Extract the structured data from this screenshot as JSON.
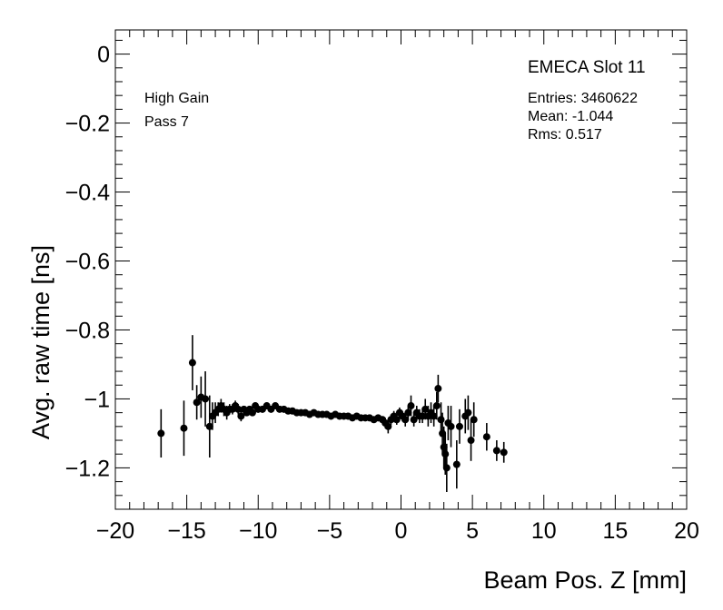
{
  "chart_data": {
    "type": "scatter",
    "title": "",
    "xlabel": "Beam Pos. Z [mm]",
    "ylabel": "Avg. raw time [ns]",
    "xlim": [
      -20,
      20
    ],
    "ylim": [
      -1.32,
      0.07
    ],
    "xticks": [
      -20,
      -15,
      -10,
      -5,
      0,
      5,
      10,
      15,
      20
    ],
    "xtick_labels": [
      "−20",
      "−15",
      "−10",
      "−5",
      "0",
      "5",
      "10",
      "15",
      "20"
    ],
    "yticks": [
      0,
      -0.2,
      -0.4,
      -0.6,
      -0.8,
      -1,
      -1.2
    ],
    "ytick_labels": [
      "0",
      "−0.2",
      "−0.4",
      "−0.6",
      "−0.8",
      "−1",
      "−1.2"
    ],
    "grid": false,
    "legend": null,
    "annotations": {
      "top_left": [
        "High Gain",
        "Pass 7"
      ],
      "title_box": "EMECA Slot 11",
      "stats": [
        "Entries: 3460622",
        "Mean: -1.044",
        "Rms: 0.517"
      ]
    },
    "series": [
      {
        "marker_color": "#000000",
        "x": [
          -16.8,
          -15.2,
          -14.6,
          -14.3,
          -14.0,
          -13.7,
          -13.4,
          -13.2,
          -13.0,
          -12.8,
          -12.6,
          -12.4,
          -12.2,
          -12.0,
          -11.8,
          -11.6,
          -11.4,
          -11.2,
          -11.0,
          -10.8,
          -10.6,
          -10.4,
          -10.2,
          -10.0,
          -9.7,
          -9.4,
          -9.1,
          -8.8,
          -8.5,
          -8.2,
          -7.9,
          -7.6,
          -7.3,
          -7.0,
          -6.7,
          -6.4,
          -6.1,
          -5.8,
          -5.5,
          -5.2,
          -4.9,
          -4.6,
          -4.3,
          -4.0,
          -3.7,
          -3.4,
          -3.1,
          -2.8,
          -2.5,
          -2.2,
          -1.9,
          -1.6,
          -1.3,
          -1.1,
          -0.9,
          -0.7,
          -0.5,
          -0.3,
          -0.1,
          0.1,
          0.3,
          0.5,
          0.7,
          0.9,
          1.1,
          1.3,
          1.5,
          1.7,
          1.9,
          2.1,
          2.3,
          2.5,
          2.6,
          2.8,
          2.9,
          3.0,
          3.1,
          3.2,
          3.3,
          3.5,
          3.9,
          4.1,
          4.5,
          4.7,
          4.9,
          5.1,
          6.0,
          6.7,
          7.2
        ],
        "y": [
          -1.1,
          -1.085,
          -0.895,
          -1.01,
          -0.995,
          -1.0,
          -1.08,
          -1.05,
          -1.04,
          -1.03,
          -1.02,
          -1.03,
          -1.04,
          -1.03,
          -1.03,
          -1.02,
          -1.03,
          -1.05,
          -1.03,
          -1.04,
          -1.03,
          -1.04,
          -1.02,
          -1.03,
          -1.03,
          -1.02,
          -1.03,
          -1.02,
          -1.03,
          -1.03,
          -1.035,
          -1.035,
          -1.04,
          -1.04,
          -1.04,
          -1.045,
          -1.04,
          -1.045,
          -1.045,
          -1.045,
          -1.05,
          -1.045,
          -1.05,
          -1.05,
          -1.05,
          -1.055,
          -1.05,
          -1.055,
          -1.055,
          -1.055,
          -1.06,
          -1.055,
          -1.06,
          -1.07,
          -1.08,
          -1.06,
          -1.05,
          -1.06,
          -1.04,
          -1.05,
          -1.06,
          -1.04,
          -1.02,
          -1.06,
          -1.04,
          -1.05,
          -1.05,
          -1.03,
          -1.05,
          -1.04,
          -1.05,
          -1.02,
          -0.97,
          -1.06,
          -1.1,
          -1.14,
          -1.16,
          -1.2,
          -1.07,
          -1.08,
          -1.19,
          -1.08,
          -1.05,
          -1.04,
          -1.12,
          -1.06,
          -1.11,
          -1.15,
          -1.155
        ],
        "yerr": [
          0.07,
          0.08,
          0.08,
          0.05,
          0.06,
          0.08,
          0.09,
          0.04,
          0.03,
          0.02,
          0.02,
          0.02,
          0.02,
          0.015,
          0.015,
          0.015,
          0.015,
          0.015,
          0.01,
          0.01,
          0.01,
          0.01,
          0.01,
          0.01,
          0.01,
          0.01,
          0.01,
          0.008,
          0.008,
          0.008,
          0.008,
          0.008,
          0.008,
          0.006,
          0.006,
          0.006,
          0.006,
          0.006,
          0.006,
          0.006,
          0.006,
          0.006,
          0.006,
          0.006,
          0.006,
          0.006,
          0.006,
          0.006,
          0.006,
          0.006,
          0.008,
          0.008,
          0.01,
          0.015,
          0.02,
          0.015,
          0.015,
          0.015,
          0.015,
          0.015,
          0.02,
          0.02,
          0.03,
          0.02,
          0.02,
          0.02,
          0.02,
          0.03,
          0.03,
          0.03,
          0.03,
          0.04,
          0.04,
          0.05,
          0.06,
          0.06,
          0.06,
          0.07,
          0.05,
          0.06,
          0.07,
          0.05,
          0.05,
          0.05,
          0.06,
          0.05,
          0.04,
          0.03,
          0.03
        ]
      }
    ]
  }
}
